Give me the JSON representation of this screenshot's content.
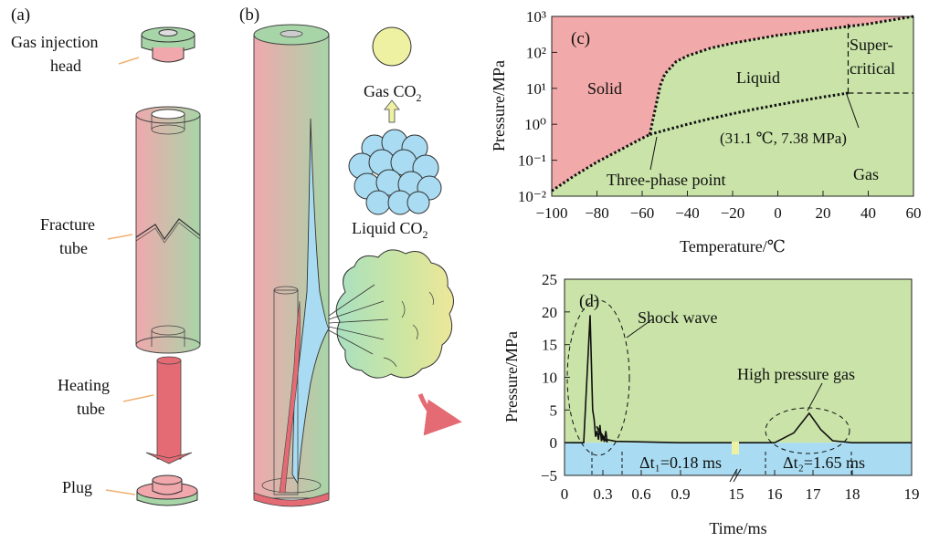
{
  "colors": {
    "pink": "#f2a9a9",
    "green": "#c9e3a8",
    "blue": "#a9dcf2",
    "red_tube": "#e46a73",
    "yellow": "#eef1a2",
    "text": "#111111"
  },
  "panel_a": {
    "label": "(a)",
    "gas_injection_head_line1": "Gas injection",
    "gas_injection_head_line2": "head",
    "fracture_tube_line1": "Fracture",
    "fracture_tube_line2": "tube",
    "heating_tube_line1": "Heating",
    "heating_tube_line2": "tube",
    "plug": "Plug"
  },
  "panel_b": {
    "label": "(b)",
    "gas_co2": "Gas CO",
    "gas_co2_sub": "2",
    "liquid_co2": "Liquid CO",
    "liquid_co2_sub": "2"
  },
  "panel_c": {
    "label": "(c)",
    "xlabel": "Temperature/℃",
    "ylabel": "Pressure/MPa",
    "region_solid": "Solid",
    "region_liquid": "Liquid",
    "region_gas": "Gas",
    "region_super_line1": "Super-",
    "region_super_line2": "critical",
    "triple_point": "Three-phase point",
    "critical_point": "(31.1 ℃, 7.38 MPa)"
  },
  "panel_d": {
    "label": "(d)",
    "xlabel": "Time/ms",
    "ylabel": "Pressure/MPa",
    "shock_wave": "Shock wave",
    "high_pressure_gas": "High pressure gas",
    "dt1": "Δt₁=0.18 ms",
    "dt2": "Δt₂=1.65 ms"
  },
  "chart_data": [
    {
      "type": "line",
      "panel": "(c)",
      "xlabel": "Temperature/℃",
      "ylabel": "Pressure/MPa",
      "xlim": [
        -100,
        60
      ],
      "ylim_log10": [
        -2,
        3
      ],
      "y_scale": "log",
      "xticks": [
        "−100",
        "−80",
        "−60",
        "−40",
        "−20",
        "0",
        "20",
        "40",
        "60"
      ],
      "yticks": [
        "10⁻²",
        "10⁻¹",
        "10⁰",
        "10¹",
        "10²",
        "10³"
      ],
      "series": [
        {
          "name": "sublimation",
          "x": [
            -100,
            -90,
            -80,
            -70,
            -60,
            -56.6
          ],
          "y": [
            0.014,
            0.037,
            0.089,
            0.19,
            0.41,
            0.52
          ]
        },
        {
          "name": "melting",
          "x": [
            -56.6,
            -55,
            -52,
            -50,
            -45,
            -40,
            -30,
            -20,
            0,
            20,
            40,
            60
          ],
          "y": [
            0.52,
            1.6,
            12,
            25,
            55,
            80,
            130,
            180,
            300,
            430,
            620,
            1000
          ]
        },
        {
          "name": "vaporization",
          "x": [
            -56.6,
            -50,
            -40,
            -30,
            -20,
            -10,
            0,
            10,
            20,
            31.1
          ],
          "y": [
            0.52,
            0.68,
            1.0,
            1.43,
            1.97,
            2.65,
            3.48,
            4.5,
            5.73,
            7.38
          ]
        }
      ],
      "critical_point": {
        "x": 31.1,
        "y": 7.38
      },
      "triple_point": {
        "x": -56.6,
        "y": 0.52
      }
    },
    {
      "type": "line",
      "panel": "(d)",
      "xlabel": "Time/ms",
      "ylabel": "Pressure/MPa",
      "ylim": [
        -5,
        25
      ],
      "xticks": [
        "0",
        "0.3",
        "0.6",
        "0.9",
        "15",
        "16",
        "17",
        "18",
        "19"
      ],
      "yticks": [
        "−5",
        "0",
        "5",
        "10",
        "15",
        "20",
        "25"
      ],
      "series": [
        {
          "name": "pressure",
          "x": [
            "0",
            "0.15",
            "0.2",
            "0.22",
            "0.25",
            "0.3",
            "0.4",
            "0.9",
            "15",
            "16",
            "16.5",
            "16.9",
            "17.2",
            "17.5",
            "18",
            "19"
          ],
          "y": [
            0,
            0,
            19.5,
            5,
            2.5,
            0.6,
            0.2,
            0,
            0,
            0,
            1.5,
            4.5,
            2,
            0.3,
            0,
            0
          ]
        }
      ]
    }
  ]
}
